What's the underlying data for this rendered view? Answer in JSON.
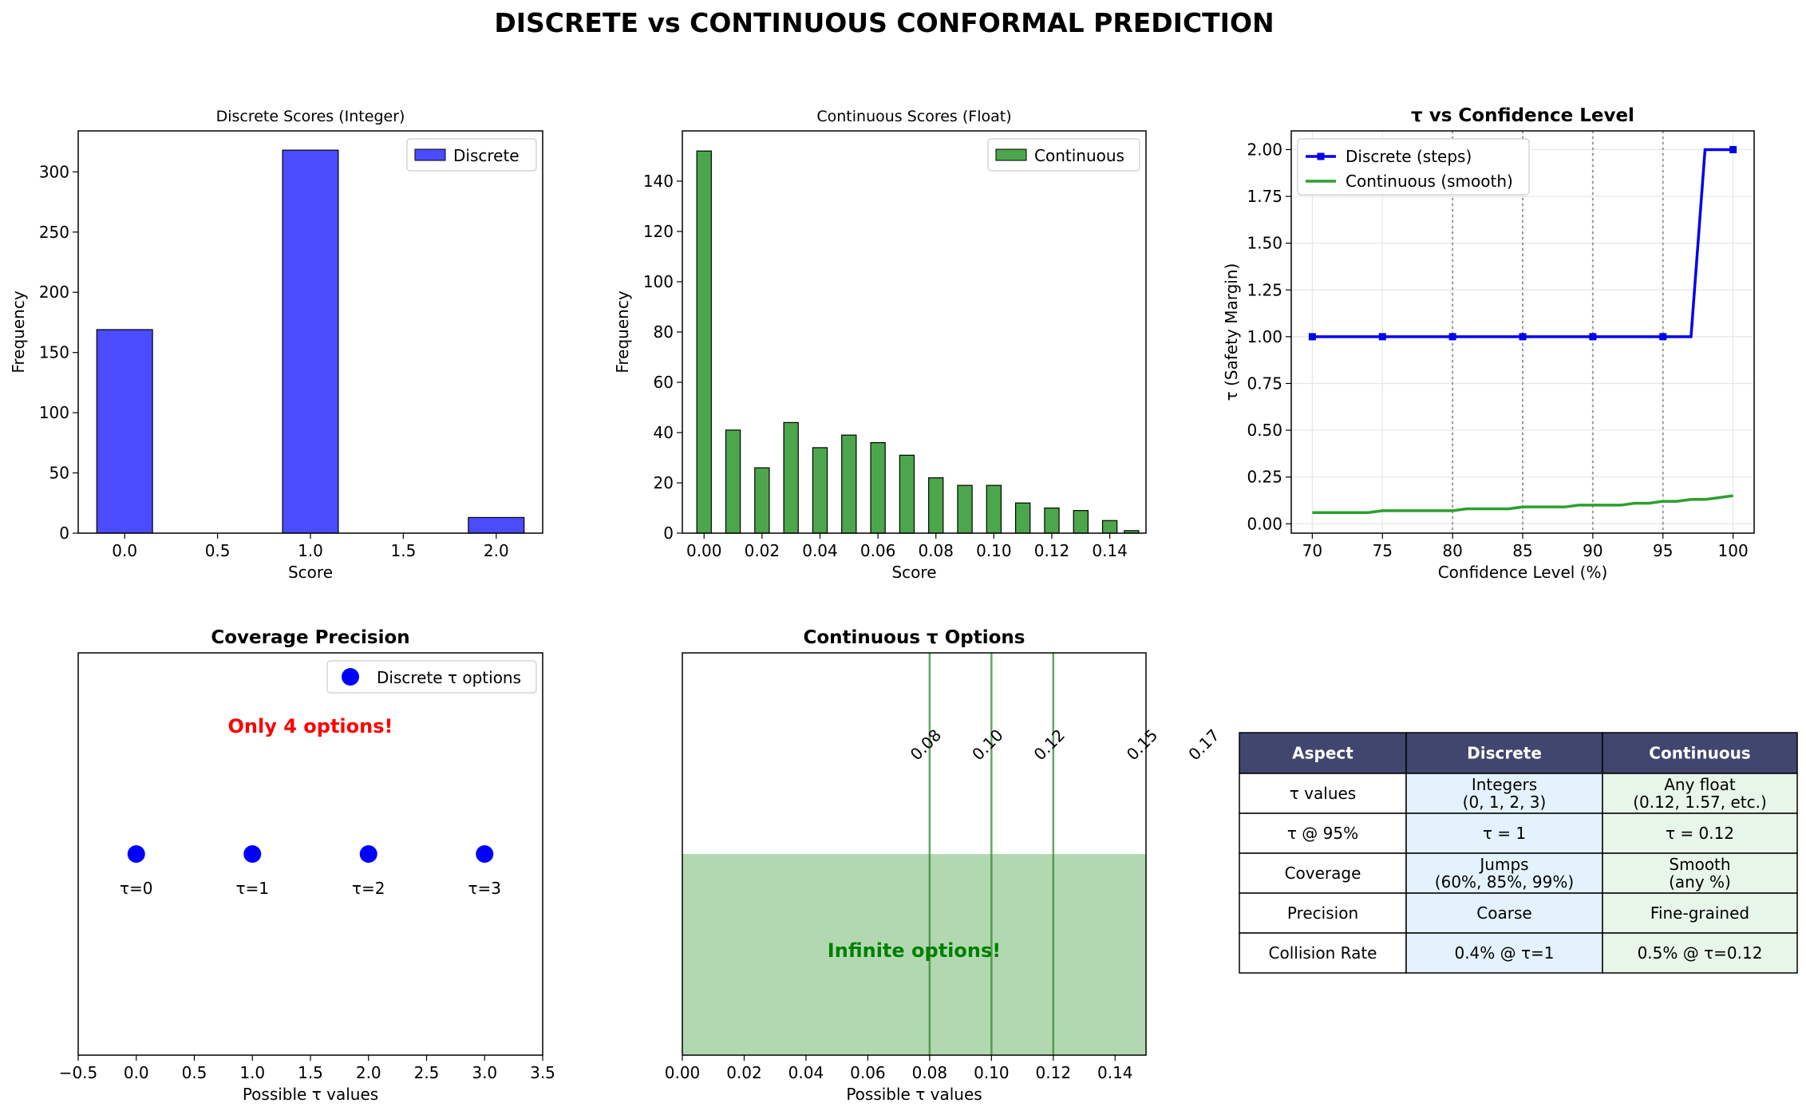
{
  "suptitle": "DISCRETE vs CONTINUOUS CONFORMAL PREDICTION",
  "chart_data": [
    {
      "type": "bar",
      "title": "Discrete Scores (Integer)",
      "xlabel": "Score",
      "ylabel": "Frequency",
      "xlim": [
        -0.25,
        2.25
      ],
      "ylim": [
        0,
        334
      ],
      "xticks": [
        0.0,
        0.5,
        1.0,
        1.5,
        2.0
      ],
      "xtick_labels": [
        "0.0",
        "0.5",
        "1.0",
        "1.5",
        "2.0"
      ],
      "yticks": [
        0,
        50,
        100,
        150,
        200,
        250,
        300
      ],
      "bar_width": 0.3,
      "series": [
        {
          "name": "Discrete",
          "color": "#4b4bff",
          "x": [
            0,
            1,
            2
          ],
          "values": [
            169,
            318,
            13
          ]
        }
      ],
      "legend": "top-right"
    },
    {
      "type": "bar",
      "title": "Continuous Scores (Float)",
      "xlabel": "Score",
      "ylabel": "Frequency",
      "xlim": [
        -0.0075,
        0.1525
      ],
      "ylim": [
        0,
        160
      ],
      "xticks": [
        0.0,
        0.02,
        0.04,
        0.06,
        0.08,
        0.1,
        0.12,
        0.14
      ],
      "xtick_labels": [
        "0.00",
        "0.02",
        "0.04",
        "0.06",
        "0.08",
        "0.10",
        "0.12",
        "0.14"
      ],
      "yticks": [
        0,
        20,
        40,
        60,
        80,
        100,
        120,
        140
      ],
      "bar_width": 0.005,
      "series": [
        {
          "name": "Continuous",
          "color": "#4ca64c",
          "x": [
            0.0,
            0.01,
            0.02,
            0.03,
            0.04,
            0.05,
            0.06,
            0.07,
            0.08,
            0.09,
            0.1,
            0.11,
            0.12,
            0.13,
            0.14,
            0.1475
          ],
          "values": [
            152,
            41,
            26,
            44,
            34,
            39,
            36,
            31,
            22,
            19,
            19,
            12,
            10,
            9,
            5,
            1
          ]
        }
      ],
      "legend": "top-right"
    },
    {
      "type": "line",
      "title": "τ vs Confidence Level",
      "xlabel": "Confidence Level (%)",
      "ylabel": "τ (Safety Margin)",
      "xlim": [
        68.5,
        101.5
      ],
      "ylim": [
        -0.05,
        2.1
      ],
      "xticks": [
        70,
        75,
        80,
        85,
        90,
        95,
        100
      ],
      "xtick_labels": [
        "70",
        "75",
        "80",
        "85",
        "90",
        "95",
        "100"
      ],
      "yticks": [
        0.0,
        0.25,
        0.5,
        0.75,
        1.0,
        1.25,
        1.5,
        1.75,
        2.0
      ],
      "ytick_labels": [
        "0.00",
        "0.25",
        "0.50",
        "0.75",
        "1.00",
        "1.25",
        "1.50",
        "1.75",
        "2.00"
      ],
      "grid": true,
      "vlines": [
        80,
        85,
        90,
        95
      ],
      "series": [
        {
          "name": "Discrete (steps)",
          "color": "#0000ee",
          "x": [
            70,
            75,
            80,
            85,
            90,
            95,
            97,
            98,
            100
          ],
          "values": [
            1.0,
            1.0,
            1.0,
            1.0,
            1.0,
            1.0,
            1.0,
            2.0,
            2.0
          ],
          "markers_x": [
            70,
            75,
            80,
            85,
            90,
            95,
            100
          ]
        },
        {
          "name": "Continuous (smooth)",
          "color": "#2ca02c",
          "x": [
            70,
            74,
            75,
            80,
            81,
            84,
            85,
            88,
            89,
            92,
            93,
            94,
            95,
            96,
            97,
            98,
            99,
            100
          ],
          "values": [
            0.06,
            0.06,
            0.07,
            0.07,
            0.08,
            0.08,
            0.09,
            0.09,
            0.1,
            0.1,
            0.11,
            0.11,
            0.12,
            0.12,
            0.13,
            0.13,
            0.14,
            0.15
          ]
        }
      ],
      "legend": "top-left"
    },
    {
      "type": "scatter",
      "title": "Coverage Precision",
      "xlabel": "Possible τ values",
      "xlim": [
        -0.5,
        3.5
      ],
      "ylim": [
        0,
        1
      ],
      "xticks": [
        -0.5,
        0.0,
        0.5,
        1.0,
        1.5,
        2.0,
        2.5,
        3.0,
        3.5
      ],
      "xtick_labels": [
        "−0.5",
        "0.0",
        "0.5",
        "1.0",
        "1.5",
        "2.0",
        "2.5",
        "3.0",
        "3.5"
      ],
      "series": [
        {
          "name": "Discrete τ options",
          "color": "#0000ff",
          "x": [
            0,
            1,
            2,
            3
          ],
          "values": [
            0.5,
            0.5,
            0.5,
            0.5
          ]
        }
      ],
      "point_labels": [
        "τ=0",
        "τ=1",
        "τ=2",
        "τ=3"
      ],
      "annotation": "Only 4 options!",
      "legend": "top-right"
    },
    {
      "type": "area",
      "title": "Continuous τ Options",
      "xlabel": "Possible τ values",
      "xlim": [
        0,
        0.15
      ],
      "ylim": [
        0,
        1
      ],
      "xticks": [
        0.0,
        0.02,
        0.04,
        0.06,
        0.08,
        0.1,
        0.12,
        0.14
      ],
      "xtick_labels": [
        "0.00",
        "0.02",
        "0.04",
        "0.06",
        "0.08",
        "0.10",
        "0.12",
        "0.14"
      ],
      "fill_color": "#b2d8b2",
      "fill_range": [
        0,
        0.15
      ],
      "fill_top": 0.5,
      "vlines": [
        0.08,
        0.1,
        0.12
      ],
      "vline_labels": [
        {
          "x": 0.08,
          "text": "0.08"
        },
        {
          "x": 0.1,
          "text": "0.10"
        },
        {
          "x": 0.12,
          "text": "0.12"
        },
        {
          "x": 0.15,
          "text": "0.15"
        },
        {
          "x": 0.17,
          "text": "0.17"
        }
      ],
      "annotation": "Infinite options!"
    },
    {
      "type": "table",
      "columns": [
        "Aspect",
        "Discrete",
        "Continuous"
      ],
      "header_color": "#40466e",
      "discrete_color": "#e3f2fd",
      "continuous_color": "#e8f5e9",
      "rows": [
        [
          "τ values",
          "Integers\n(0, 1, 2, 3)",
          "Any float\n(0.12, 1.57, etc.)"
        ],
        [
          "τ @ 95%",
          "τ = 1",
          "τ = 0.12"
        ],
        [
          "Coverage",
          "Jumps\n(60%, 85%, 99%)",
          "Smooth\n(any %)"
        ],
        [
          "Precision",
          "Coarse",
          "Fine-grained"
        ],
        [
          "Collision Rate",
          "0.4% @ τ=1",
          "0.5% @ τ=0.12"
        ]
      ]
    }
  ]
}
